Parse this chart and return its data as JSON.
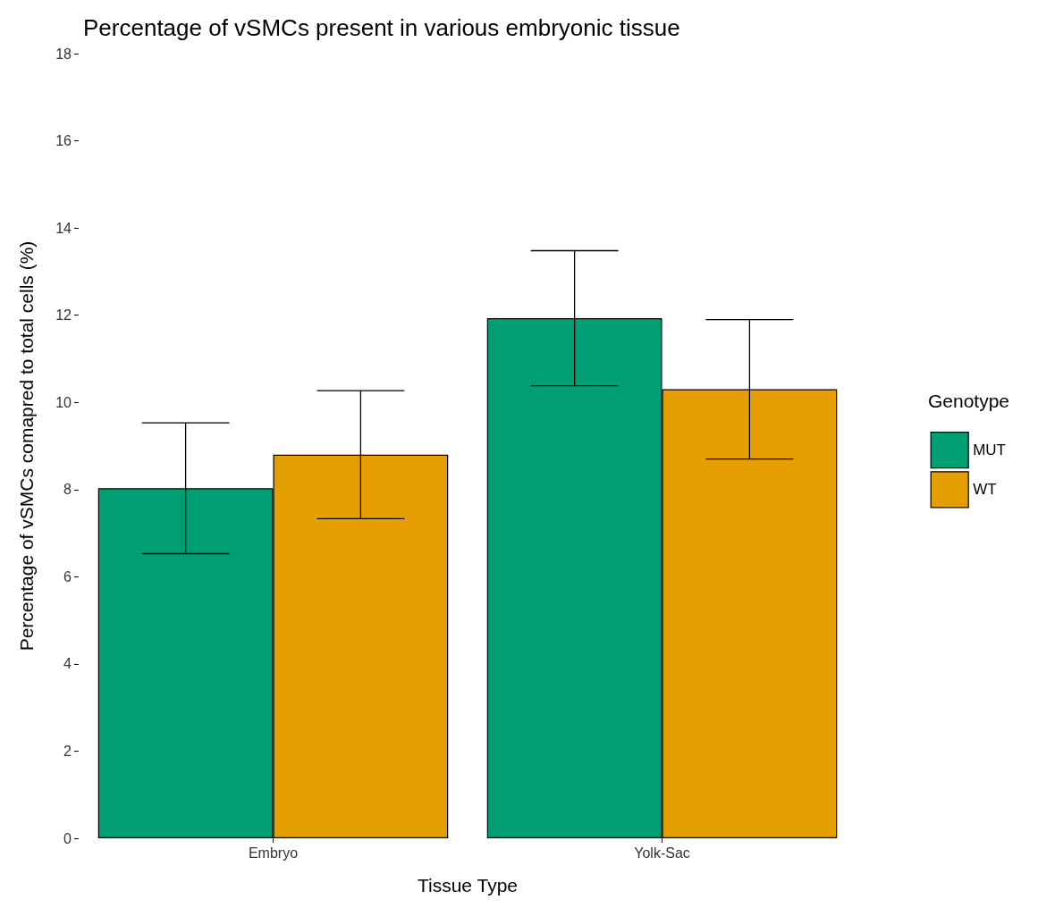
{
  "chart_data": {
    "type": "bar",
    "title": "Percentage of vSMCs present in various embryonic tissue",
    "xlabel": "Tissue Type",
    "ylabel": "Percentage of vSMCs comapred to total cells (%)",
    "legend_title": "Genotype",
    "categories": [
      "Embryo",
      "Yolk-Sac"
    ],
    "series": [
      {
        "name": "MUT",
        "color": "#009e73",
        "values": [
          8.03,
          11.93
        ],
        "errors": [
          1.5,
          1.55
        ]
      },
      {
        "name": "WT",
        "color": "#e69f00",
        "values": [
          8.8,
          10.3
        ],
        "errors": [
          1.47,
          1.6
        ]
      }
    ],
    "ylim": [
      0,
      18
    ],
    "yticks": [
      0,
      2,
      4,
      6,
      8,
      10,
      12,
      14,
      16,
      18
    ],
    "grid": false,
    "legend": "right"
  }
}
